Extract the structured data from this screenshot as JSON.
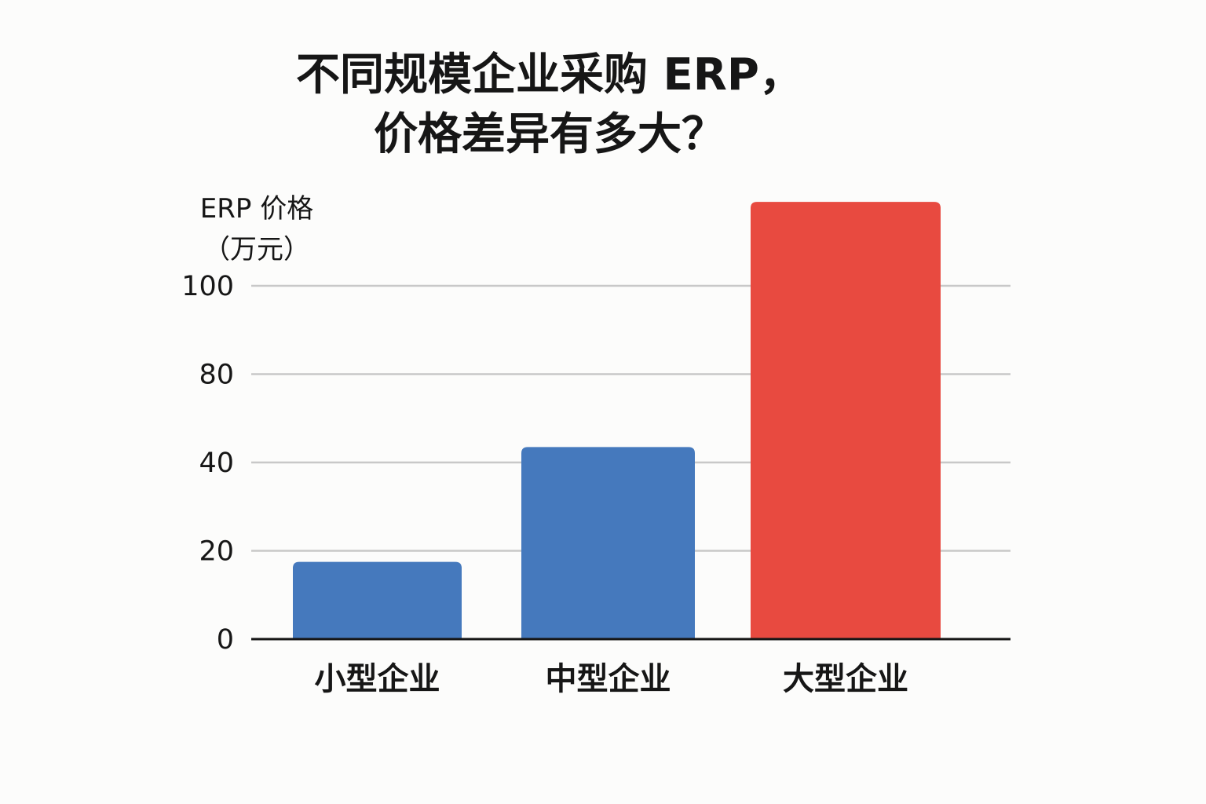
{
  "chart_data": {
    "type": "bar",
    "title": [
      "不同规模企业采购 ERP，",
      "价格差异有多大？"
    ],
    "ylabel": [
      "ERP 价格",
      "（万元）"
    ],
    "xlabel": "",
    "categories": [
      "小型企业",
      "中型企业",
      "大型企业"
    ],
    "values": [
      17.5,
      47,
      119
    ],
    "bar_colors": [
      "#4579bd",
      "#4579bd",
      "#e84a40"
    ],
    "yticks": [
      0,
      20,
      40,
      80,
      100
    ],
    "grid": true,
    "grid_color": "#c8c8c8",
    "axis_color": "#161616"
  }
}
